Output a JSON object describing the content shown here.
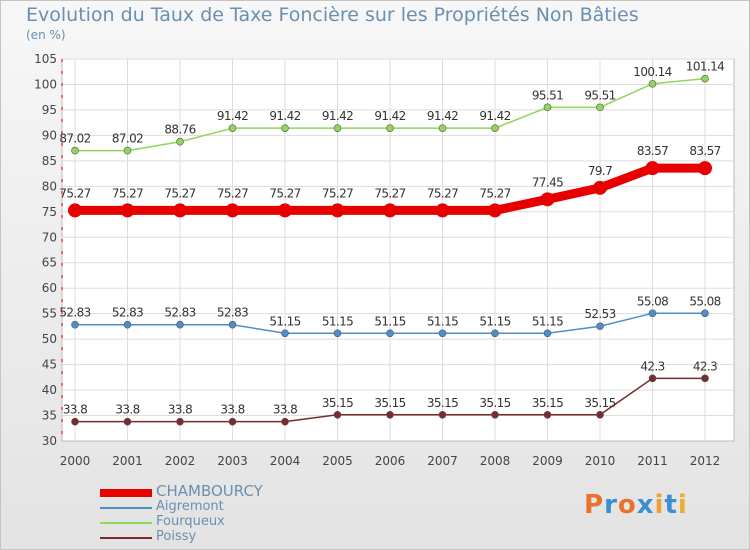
{
  "title": "Evolution du Taux de Taxe Foncière sur les Propriétés Non Bâties",
  "subtitle": "(en %)",
  "logo": [
    "P",
    "r",
    "o",
    "x",
    "i",
    "t",
    "i"
  ],
  "logo_colors": [
    "#e8722b",
    "#3b8fd0",
    "#e8722b",
    "#3b8fd0",
    "#f0a030",
    "#3b8fd0",
    "#e8b02b"
  ],
  "chart_data": {
    "type": "line",
    "title": "Evolution du Taux de Taxe Foncière sur les Propriétés Non Bâties",
    "ylabel": "(en %)",
    "xlabel": "",
    "x": [
      "2000",
      "2001",
      "2002",
      "2003",
      "2004",
      "2005",
      "2006",
      "2007",
      "2008",
      "2009",
      "2010",
      "2011",
      "2012"
    ],
    "yticks": [
      "30",
      "35",
      "40",
      "45",
      "50",
      "55",
      "60",
      "65",
      "70",
      "75",
      "80",
      "85",
      "90",
      "95",
      "100",
      "105"
    ],
    "ylim": [
      30,
      105
    ],
    "grid": true,
    "legend": "bottom-left",
    "series": [
      {
        "name": "CHAMBOURCY",
        "color": "#e60000",
        "highlight": true,
        "values": [
          75.27,
          75.27,
          75.27,
          75.27,
          75.27,
          75.27,
          75.27,
          75.27,
          75.27,
          77.45,
          79.7,
          83.57,
          83.57
        ],
        "labels": [
          "75.27",
          "75.27",
          "75.27",
          "75.27",
          "75.27",
          "75.27",
          "75.27",
          "75.27",
          "75.27",
          "77.45",
          "79.7",
          "83.57",
          "83.57"
        ]
      },
      {
        "name": "Aigremont",
        "color": "#4f8fc9",
        "values": [
          52.83,
          52.83,
          52.83,
          52.83,
          51.15,
          51.15,
          51.15,
          51.15,
          51.15,
          51.15,
          52.53,
          55.08,
          55.08
        ],
        "labels": [
          "52.83",
          "52.83",
          "52.83",
          "52.83",
          "51.15",
          "51.15",
          "51.15",
          "51.15",
          "51.15",
          "51.15",
          "52.53",
          "55.08",
          "55.08"
        ]
      },
      {
        "name": "Fourqueux",
        "color": "#8fd65a",
        "values": [
          87.02,
          87.02,
          88.76,
          91.42,
          91.42,
          91.42,
          91.42,
          91.42,
          91.42,
          95.51,
          95.51,
          100.14,
          101.14
        ],
        "labels": [
          "87.02",
          "87.02",
          "88.76",
          "91.42",
          "91.42",
          "91.42",
          "91.42",
          "91.42",
          "91.42",
          "95.51",
          "95.51",
          "100.14",
          "101.14"
        ]
      },
      {
        "name": "Poissy",
        "color": "#7a2b2b",
        "values": [
          33.8,
          33.8,
          33.8,
          33.8,
          33.8,
          35.15,
          35.15,
          35.15,
          35.15,
          35.15,
          35.15,
          42.3,
          42.3
        ],
        "labels": [
          "33.8",
          "33.8",
          "33.8",
          "33.8",
          "33.8",
          "35.15",
          "35.15",
          "35.15",
          "35.15",
          "35.15",
          "35.15",
          "42.3",
          "42.3"
        ]
      }
    ]
  }
}
